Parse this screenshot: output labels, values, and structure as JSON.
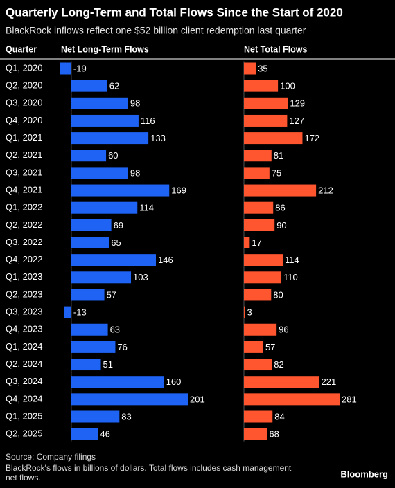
{
  "chart_data": {
    "type": "bar",
    "orientation": "horizontal",
    "title": "Quarterly Long-Term and Total Flows Since the Start of 2020",
    "subtitle": "BlackRock inflows reflect one $52 billion client redemption last quarter",
    "category_header": "Quarter",
    "categories": [
      "Q1, 2020",
      "Q2, 2020",
      "Q3, 2020",
      "Q4, 2020",
      "Q1, 2021",
      "Q2, 2021",
      "Q3, 2021",
      "Q4, 2021",
      "Q1, 2022",
      "Q2, 2022",
      "Q3, 2022",
      "Q4, 2022",
      "Q1, 2023",
      "Q2, 2023",
      "Q3, 2023",
      "Q4, 2023",
      "Q1, 2024",
      "Q2, 2024",
      "Q3, 2024",
      "Q4, 2024",
      "Q1, 2025",
      "Q2, 2025"
    ],
    "series": [
      {
        "name": "Net Long-Term Flows",
        "color": "#1f63f4",
        "values": [
          -19,
          62,
          98,
          116,
          133,
          60,
          98,
          169,
          114,
          69,
          65,
          146,
          103,
          57,
          -13,
          63,
          76,
          51,
          160,
          201,
          83,
          46
        ]
      },
      {
        "name": "Net Total Flows",
        "color": "#ff5630",
        "values": [
          35,
          100,
          129,
          127,
          172,
          81,
          75,
          212,
          86,
          90,
          17,
          114,
          110,
          80,
          3,
          96,
          57,
          82,
          221,
          281,
          84,
          68
        ]
      }
    ],
    "source": "Source: Company filings",
    "note": "BlackRock's flows in billions of dollars. Total flows includes cash management net flows.",
    "brand": "Bloomberg"
  }
}
